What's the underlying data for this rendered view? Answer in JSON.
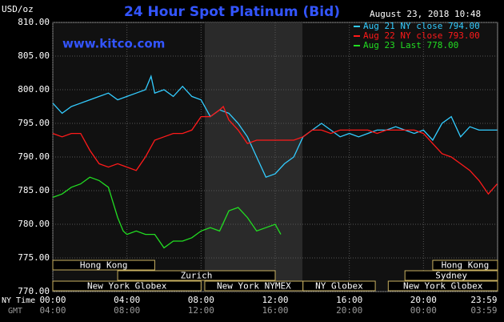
{
  "chart_data": {
    "type": "line",
    "title": "24 Hour Spot Platinum (Bid)",
    "y_unit": "USD/oz",
    "timestamp": "August 23, 2018 10:48",
    "watermark": "www.kitco.com",
    "x_row_labels": [
      "NY Time",
      "GMT"
    ],
    "xlim": [
      0,
      24
    ],
    "xticks": [
      {
        "value": 0,
        "label": "00:00"
      },
      {
        "value": 4,
        "label": "04:00"
      },
      {
        "value": 8,
        "label": "08:00"
      },
      {
        "value": 12,
        "label": "12:00"
      },
      {
        "value": 16,
        "label": "16:00"
      },
      {
        "value": 20,
        "label": "20:00"
      },
      {
        "value": 23.98,
        "label": "23:59"
      }
    ],
    "gmt_labels": [
      "04:00",
      "08:00",
      "12:00",
      "16:00",
      "20:00",
      "00:00",
      "03:59"
    ],
    "ylim": [
      770,
      810
    ],
    "yticks": [
      {
        "value": 770,
        "label": "770.00"
      },
      {
        "value": 775,
        "label": "775.00"
      },
      {
        "value": 780,
        "label": "780.00"
      },
      {
        "value": 785,
        "label": "785.00"
      },
      {
        "value": 790,
        "label": "790.00"
      },
      {
        "value": 795,
        "label": "795.00"
      },
      {
        "value": 800,
        "label": "800.00"
      },
      {
        "value": 805,
        "label": "805.00"
      },
      {
        "value": 810,
        "label": "810.00"
      }
    ],
    "grid": true,
    "legend": "top-right",
    "series": [
      {
        "name": "Aug 21 NY close 794.00",
        "color": "#33ccff",
        "x": [
          0,
          0.5,
          1,
          1.5,
          2,
          2.5,
          3,
          3.5,
          4,
          4.5,
          5,
          5.3,
          5.5,
          6,
          6.5,
          7,
          7.5,
          8,
          8.5,
          9,
          9.5,
          10,
          10.5,
          11,
          11.5,
          12,
          12.5,
          13,
          13.5,
          14,
          14.5,
          15,
          15.5,
          16,
          16.5,
          17,
          17.5,
          18,
          18.5,
          19,
          19.5,
          20,
          20.5,
          21,
          21.5,
          22,
          22.5,
          23,
          23.98
        ],
        "values": [
          798,
          796.5,
          797.5,
          798,
          798.5,
          799,
          799.5,
          798.5,
          799,
          799.5,
          800,
          802,
          799.5,
          800,
          799,
          800.5,
          799,
          798.5,
          796,
          797,
          796.5,
          795,
          793,
          790,
          787,
          787.5,
          789,
          790,
          793,
          794,
          795,
          794,
          793,
          793.5,
          793,
          793.5,
          794,
          794,
          794.5,
          794,
          793.5,
          794,
          792.5,
          795,
          796,
          793,
          794.5,
          794,
          794
        ]
      },
      {
        "name": "Aug 22 NY close 793.00",
        "color": "#ff1a1a",
        "x": [
          0,
          0.5,
          1,
          1.5,
          2,
          2.5,
          3,
          3.5,
          4,
          4.5,
          5,
          5.5,
          6,
          6.5,
          7,
          7.5,
          8,
          8.5,
          9,
          9.2,
          9.5,
          10,
          10.5,
          11,
          11.5,
          12,
          12.5,
          13,
          13.5,
          14,
          14.5,
          15,
          15.5,
          16,
          16.5,
          17,
          17.5,
          18,
          18.5,
          19,
          19.5,
          20,
          20.5,
          21,
          21.5,
          22,
          22.5,
          23,
          23.5,
          23.98
        ],
        "values": [
          793.5,
          793,
          793.5,
          793.5,
          791,
          789,
          788.5,
          789,
          788.5,
          788,
          790,
          792.5,
          793,
          793.5,
          793.5,
          794,
          796,
          796,
          797,
          797.5,
          795.5,
          794,
          792,
          792.5,
          792.5,
          792.5,
          792.5,
          792.5,
          793,
          794,
          794,
          793.5,
          794,
          794,
          794,
          794,
          793.5,
          794,
          794,
          794,
          794,
          793.5,
          792,
          790.5,
          790,
          789,
          788,
          786.5,
          784.5,
          786
        ]
      },
      {
        "name": "Aug 23 Last 778.00",
        "color": "#22dd22",
        "x": [
          0,
          0.5,
          1,
          1.5,
          2,
          2.5,
          3,
          3.5,
          3.8,
          4,
          4.5,
          5,
          5.5,
          6,
          6.5,
          7,
          7.5,
          8,
          8.5,
          9,
          9.5,
          10,
          10.5,
          11,
          11.5,
          12,
          12.3
        ],
        "values": [
          784,
          784.5,
          785.5,
          786,
          787,
          786.5,
          785.5,
          781,
          779,
          778.5,
          779,
          778.5,
          778.5,
          776.5,
          777.5,
          777.5,
          778,
          779,
          779.5,
          779,
          782,
          782.5,
          781,
          779,
          779.5,
          780,
          778.5
        ]
      }
    ],
    "sessions": [
      [
        {
          "name": "Hong Kong",
          "start": 0,
          "end": 5.5
        },
        {
          "name": "Hong Kong",
          "start": 20.5,
          "end": 24
        }
      ],
      [
        {
          "name": "Zurich",
          "start": 3.5,
          "end": 12
        },
        {
          "name": "Sydney",
          "start": 19,
          "end": 24
        }
      ],
      [
        {
          "name": "New York Globex",
          "start": 0,
          "end": 8
        },
        {
          "name": "New York NYMEX",
          "start": 8.2,
          "end": 13.5
        },
        {
          "name": "NY Globex",
          "start": 13.5,
          "end": 17.4
        },
        {
          "name": "New York Globex",
          "start": 18.1,
          "end": 24
        }
      ]
    ]
  }
}
